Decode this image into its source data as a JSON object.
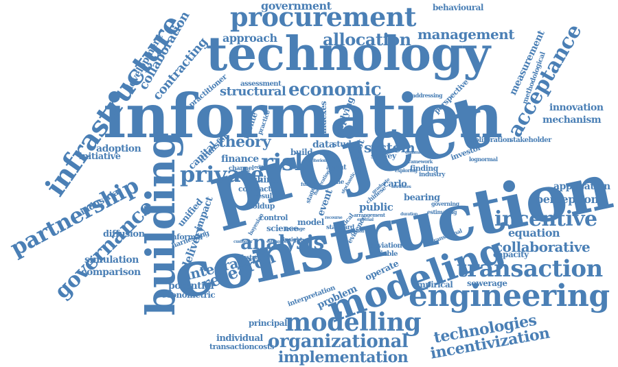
{
  "word_color": "#4a7fb5",
  "words": [
    "information",
    "technology",
    "project",
    "construction",
    "building",
    "infrastructure",
    "procurement",
    "modeling",
    "engineering",
    "partnership",
    "acceptance",
    "transaction",
    "modelling",
    "organizational",
    "implementation",
    "incentive",
    "private",
    "risk",
    "research",
    "analysis",
    "governance",
    "technologies",
    "incentivization",
    "economic",
    "allocation",
    "management",
    "integrated",
    "collaborative",
    "theory",
    "system",
    "structural",
    "contracting",
    "collaboration",
    "development",
    "approach",
    "government",
    "measurement",
    "behavioural",
    "application",
    "perception",
    "equation",
    "capacity",
    "mechanism",
    "innovation",
    "adoption",
    "initiative",
    "industrial",
    "diffusion",
    "simulation",
    "comparison",
    "delivery",
    "impact",
    "potential",
    "econometric",
    "individual",
    "transactioncosts",
    "principal",
    "problem",
    "operate",
    "empirical",
    "sewerage",
    "finance",
    "capital",
    "transfer",
    "unified",
    "informal",
    "harnessing",
    "interpretation",
    "festschrift",
    "deviation",
    "variable",
    "evidence",
    "model",
    "control",
    "holdup",
    "result",
    "china",
    "contract",
    "science",
    "data",
    "study",
    "cost",
    "public",
    "bearing",
    "carlo",
    "survey",
    "industry",
    "finding",
    "framework",
    "investor",
    "lognormal",
    "governing",
    "estimating",
    "transitional",
    "chinese",
    "event",
    "stage",
    "time",
    "agent",
    "build",
    "practice",
    "monte",
    "practitioner",
    "assessment",
    "perspective",
    "addressing",
    "methodological",
    "proliferation",
    "stakeholder",
    "indexes",
    "applying",
    "standard",
    "channel",
    "editorial",
    "customer",
    "insight",
    "future",
    "supply",
    "hypothesis",
    "bayesian",
    "estimation",
    "critical",
    "stochastic",
    "graduate",
    "exploring",
    "attributes",
    "cooperation",
    "arrangement",
    "leverage",
    "moderating",
    "external",
    "recourse",
    "dynamic",
    "regulation",
    "duration",
    "criterion"
  ]
}
